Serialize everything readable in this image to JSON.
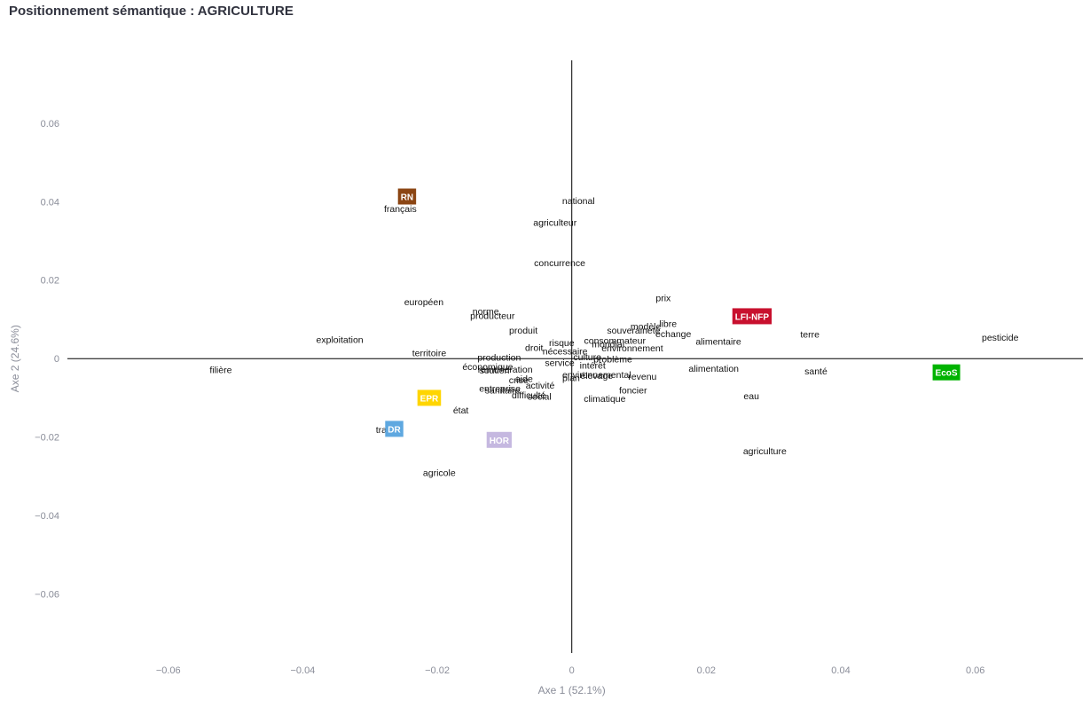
{
  "page": {
    "title": "Positionnement sémantique : AGRICULTURE"
  },
  "chart_data": {
    "type": "scatter",
    "title": "Positionnement sémantique : AGRICULTURE",
    "xlabel": "Axe 1 (52.1%)",
    "ylabel": "Axe 2 (24.6%)",
    "xlim": [
      -0.075,
      0.076
    ],
    "ylim": [
      -0.075,
      0.076
    ],
    "xticks": [
      -0.06,
      -0.04,
      -0.02,
      0,
      0.02,
      0.04,
      0.06
    ],
    "yticks": [
      -0.06,
      -0.04,
      -0.02,
      0,
      0.02,
      0.04,
      0.06
    ],
    "xtick_labels": [
      "−0.06",
      "−0.04",
      "−0.02",
      "0",
      "0.02",
      "0.04",
      "0.06"
    ],
    "ytick_labels": [
      "−0.06",
      "−0.04",
      "−0.02",
      "0",
      "0.02",
      "0.04",
      "0.06"
    ],
    "grid": false,
    "zero_lines": true,
    "words": [
      {
        "label": "national",
        "x": 0.001,
        "y": 0.0403
      },
      {
        "label": "français",
        "x": -0.0255,
        "y": 0.0383
      },
      {
        "label": "agriculteur",
        "x": -0.0025,
        "y": 0.0348
      },
      {
        "label": "concurrence",
        "x": -0.0018,
        "y": 0.0245
      },
      {
        "label": "européen",
        "x": -0.022,
        "y": 0.0145
      },
      {
        "label": "prix",
        "x": 0.0136,
        "y": 0.0155
      },
      {
        "label": "norme",
        "x": -0.0128,
        "y": 0.0121
      },
      {
        "label": "producteur",
        "x": -0.0118,
        "y": 0.011
      },
      {
        "label": "modèle",
        "x": 0.011,
        "y": 0.0083
      },
      {
        "label": "libre",
        "x": 0.0143,
        "y": 0.009
      },
      {
        "label": "souveraineté",
        "x": 0.0092,
        "y": 0.0073
      },
      {
        "label": "produit",
        "x": -0.0072,
        "y": 0.0073
      },
      {
        "label": "échange",
        "x": 0.0151,
        "y": 0.0064
      },
      {
        "label": "terre",
        "x": 0.0354,
        "y": 0.0063
      },
      {
        "label": "pesticide",
        "x": 0.0637,
        "y": 0.0055
      },
      {
        "label": "exploitation",
        "x": -0.0345,
        "y": 0.0049
      },
      {
        "label": "consommateur",
        "x": 0.0064,
        "y": 0.0047
      },
      {
        "label": "alimentaire",
        "x": 0.0218,
        "y": 0.0045
      },
      {
        "label": "risque",
        "x": -0.0015,
        "y": 0.0041
      },
      {
        "label": "mondial",
        "x": 0.0054,
        "y": 0.0038
      },
      {
        "label": "droit",
        "x": -0.0056,
        "y": 0.0029
      },
      {
        "label": "environnement",
        "x": 0.009,
        "y": 0.0028
      },
      {
        "label": "nécessaire",
        "x": -0.001,
        "y": 0.002
      },
      {
        "label": "territoire",
        "x": -0.0212,
        "y": 0.0015
      },
      {
        "label": "culture",
        "x": 0.0023,
        "y": 0.0005
      },
      {
        "label": "production",
        "x": -0.0108,
        "y": 0.0004
      },
      {
        "label": "problème",
        "x": 0.0061,
        "y": -0.0001
      },
      {
        "label": "service",
        "x": -0.0018,
        "y": -0.001
      },
      {
        "label": "intérêt",
        "x": 0.0031,
        "y": -0.0016
      },
      {
        "label": "économique",
        "x": -0.0125,
        "y": -0.002
      },
      {
        "label": "filière",
        "x": -0.0522,
        "y": -0.0028
      },
      {
        "label": "alimentation",
        "x": 0.0211,
        "y": -0.0024
      },
      {
        "label": "soutien",
        "x": -0.0115,
        "y": -0.0029
      },
      {
        "label": "rémunération",
        "x": -0.0099,
        "y": -0.0027
      },
      {
        "label": "santé",
        "x": 0.0363,
        "y": -0.0031
      },
      {
        "label": "environnemental",
        "x": 0.0037,
        "y": -0.004
      },
      {
        "label": "élevage",
        "x": 0.0037,
        "y": -0.0042
      },
      {
        "label": "plan",
        "x": -0.0001,
        "y": -0.0048
      },
      {
        "label": "revenu",
        "x": 0.0105,
        "y": -0.0045
      },
      {
        "label": "aide",
        "x": -0.0071,
        "y": -0.005
      },
      {
        "label": "crise",
        "x": -0.0079,
        "y": -0.0054
      },
      {
        "label": "activité",
        "x": -0.0047,
        "y": -0.0067
      },
      {
        "label": "entreprise",
        "x": -0.0107,
        "y": -0.0075
      },
      {
        "label": "sanitaire",
        "x": -0.0103,
        "y": -0.008
      },
      {
        "label": "difficulté",
        "x": -0.0064,
        "y": -0.0092
      },
      {
        "label": "social",
        "x": -0.0048,
        "y": -0.0096
      },
      {
        "label": "foncier",
        "x": 0.0091,
        "y": -0.008
      },
      {
        "label": "eau",
        "x": 0.0267,
        "y": -0.0094
      },
      {
        "label": "climatique",
        "x": 0.0049,
        "y": -0.0101
      },
      {
        "label": "état",
        "x": -0.0165,
        "y": -0.0131
      },
      {
        "label": "travail",
        "x": -0.0273,
        "y": -0.018
      },
      {
        "label": "agriculture",
        "x": 0.0287,
        "y": -0.0235
      },
      {
        "label": "agricole",
        "x": -0.0197,
        "y": -0.029
      }
    ],
    "parties": [
      {
        "label": "RN",
        "x": -0.0245,
        "y": 0.0413,
        "color": "#8b4513"
      },
      {
        "label": "LFI-NFP",
        "x": 0.0268,
        "y": 0.0108,
        "color": "#c8102e"
      },
      {
        "label": "EcoS",
        "x": 0.0557,
        "y": -0.0035,
        "color": "#00b300"
      },
      {
        "label": "EPR",
        "x": -0.0212,
        "y": -0.01,
        "color": "#ffd500"
      },
      {
        "label": "DR",
        "x": -0.0264,
        "y": -0.0179,
        "color": "#5fa8e0"
      },
      {
        "label": "HOR",
        "x": -0.0108,
        "y": -0.0207,
        "color": "#c5b8e0"
      }
    ]
  }
}
